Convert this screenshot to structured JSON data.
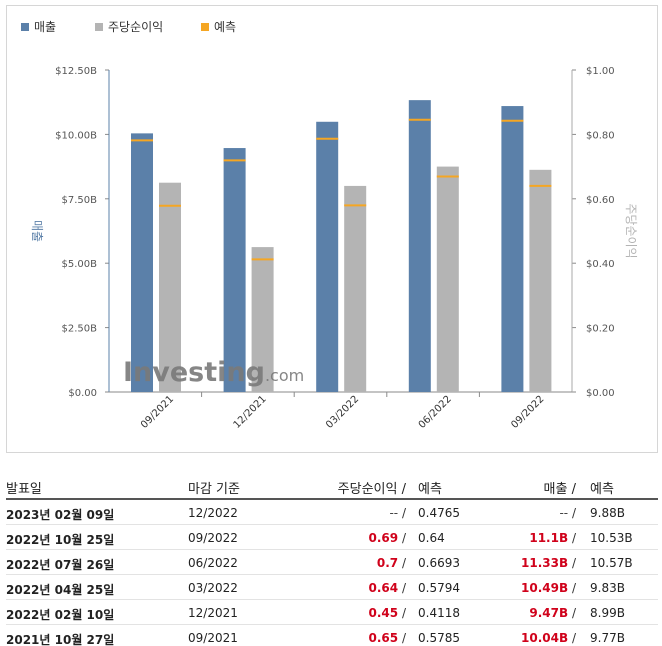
{
  "legend": [
    {
      "label": "매출",
      "color": "#5b80a9"
    },
    {
      "label": "주당순이익",
      "color": "#b4b4b4"
    },
    {
      "label": "예측",
      "color": "#f5a623"
    }
  ],
  "chart_data": {
    "type": "bar",
    "categories": [
      "09/2021",
      "12/2021",
      "03/2022",
      "06/2022",
      "09/2022"
    ],
    "series": [
      {
        "name": "매출",
        "axis": "left",
        "values": [
          10.04,
          9.47,
          10.49,
          11.33,
          11.1
        ],
        "color": "#5b80a9"
      },
      {
        "name": "주당순이익",
        "axis": "right",
        "values": [
          0.65,
          0.45,
          0.64,
          0.7,
          0.69
        ],
        "color": "#b4b4b4"
      }
    ],
    "forecasts": {
      "매출": [
        9.77,
        8.99,
        9.83,
        10.57,
        10.53
      ],
      "주당순이익": [
        0.5785,
        0.4118,
        0.5794,
        0.6693,
        0.64
      ],
      "color": "#f5a623"
    },
    "ylabel_left": "매출",
    "ylabel_right": "주당순이익",
    "left_ticks": [
      "$0.00",
      "$2.50B",
      "$5.00B",
      "$7.50B",
      "$10.00B",
      "$12.50B"
    ],
    "right_ticks": [
      "$0.00",
      "$0.20",
      "$0.40",
      "$0.60",
      "$0.80",
      "$1.00"
    ],
    "ylim_left": [
      0,
      12.5
    ],
    "ylim_right": [
      0,
      1.0
    ],
    "grid": false,
    "watermark": "Investing.com"
  },
  "table": {
    "headers": {
      "date": "발표일",
      "period": "마감 기준",
      "eps": "주당순이익",
      "eps_forecast": "예측",
      "revenue": "매출",
      "revenue_forecast": "예측",
      "slash": "/"
    },
    "rows": [
      {
        "date": "2023년 02월 09일",
        "period": "12/2022",
        "eps": "--",
        "eps_forecast": "0.4765",
        "revenue": "--",
        "revenue_forecast": "9.88B",
        "highlight": false
      },
      {
        "date": "2022년 10월 25일",
        "period": "09/2022",
        "eps": "0.69",
        "eps_forecast": "0.64",
        "revenue": "11.1B",
        "revenue_forecast": "10.53B",
        "highlight": true
      },
      {
        "date": "2022년 07월 26일",
        "period": "06/2022",
        "eps": "0.7",
        "eps_forecast": "0.6693",
        "revenue": "11.33B",
        "revenue_forecast": "10.57B",
        "highlight": true
      },
      {
        "date": "2022년 04월 25일",
        "period": "03/2022",
        "eps": "0.64",
        "eps_forecast": "0.5794",
        "revenue": "10.49B",
        "revenue_forecast": "9.83B",
        "highlight": true
      },
      {
        "date": "2022년 02월 10일",
        "period": "12/2021",
        "eps": "0.45",
        "eps_forecast": "0.4118",
        "revenue": "9.47B",
        "revenue_forecast": "8.99B",
        "highlight": true
      },
      {
        "date": "2021년 10월 27일",
        "period": "09/2021",
        "eps": "0.65",
        "eps_forecast": "0.5785",
        "revenue": "10.04B",
        "revenue_forecast": "9.77B",
        "highlight": true
      }
    ]
  }
}
